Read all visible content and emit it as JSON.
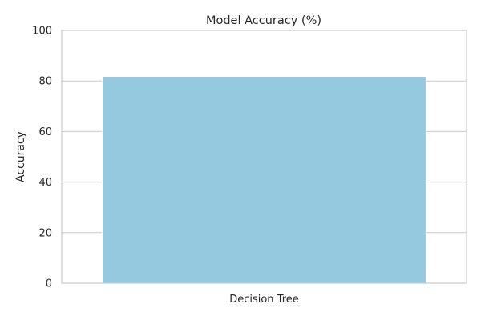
{
  "chart_data": {
    "type": "bar",
    "title": "Model Accuracy (%)",
    "xlabel": "",
    "ylabel": "Accuracy",
    "categories": [
      "Decision Tree"
    ],
    "values": [
      81.8
    ],
    "ylim": [
      0,
      100
    ],
    "yticks": [
      "0",
      "20",
      "40",
      "60",
      "80",
      "100"
    ],
    "grid": true,
    "legend": false,
    "bar_color": "#95c9df",
    "bar_edge_color": "#ffffff",
    "grid_color": "#cccccc",
    "text_color": "#262626"
  }
}
